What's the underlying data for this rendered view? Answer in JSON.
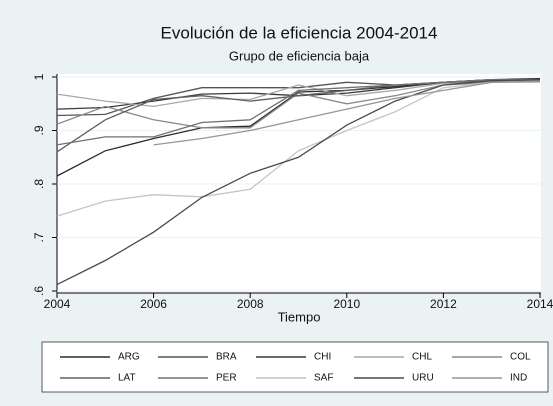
{
  "chart_data": {
    "type": "line",
    "title": "Evolución de la eficiencia 2004-2014",
    "subtitle": "Grupo de eficiencia baja",
    "x_label": "Tiempo",
    "x": [
      2004,
      2005,
      2006,
      2007,
      2008,
      2009,
      2010,
      2011,
      2012,
      2013,
      2014
    ],
    "xlim": [
      2004,
      2014
    ],
    "xticks": [
      2004,
      2006,
      2008,
      2010,
      2012,
      2014
    ],
    "ylim": [
      0.6,
      1
    ],
    "yticks": [
      {
        "value": 0.6,
        "label": ".6"
      },
      {
        "value": 0.7,
        "label": ".7"
      },
      {
        "value": 0.8,
        "label": ".8"
      },
      {
        "value": 0.9,
        "label": ".9"
      },
      1
    ],
    "grid": true,
    "legend_position": "bottom",
    "series": [
      {
        "name": "ARG",
        "color": "#2b2b2b",
        "values": [
          0.815,
          0.862,
          0.885,
          0.905,
          0.908,
          0.972,
          0.975,
          0.982,
          0.99,
          0.995,
          0.997
        ]
      },
      {
        "name": "BRA",
        "color": "#555555",
        "values": [
          0.928,
          0.93,
          0.96,
          0.98,
          0.98,
          0.98,
          0.99,
          0.985,
          0.99,
          0.993,
          0.995
        ]
      },
      {
        "name": "CHI",
        "color": "#3a3a3a",
        "values": [
          0.94,
          0.943,
          0.955,
          0.968,
          0.97,
          0.965,
          0.97,
          0.98,
          0.99,
          0.995,
          0.995
        ]
      },
      {
        "name": "CHL",
        "color": "#a8a8a8",
        "values": [
          0.968,
          0.955,
          0.945,
          0.96,
          0.958,
          0.985,
          0.965,
          0.975,
          0.988,
          0.992,
          0.993
        ]
      },
      {
        "name": "COL",
        "color": "#8a8a8a",
        "values": [
          0.912,
          0.945,
          0.92,
          0.905,
          0.905,
          0.97,
          0.95,
          0.965,
          0.985,
          0.99,
          0.99
        ]
      },
      {
        "name": "LAT",
        "color": "#606060",
        "values": [
          0.86,
          0.92,
          0.958,
          0.965,
          0.955,
          0.965,
          0.975,
          0.985,
          0.99,
          0.993,
          0.995
        ]
      },
      {
        "name": "PER",
        "color": "#707070",
        "values": [
          0.873,
          0.888,
          0.888,
          0.915,
          0.92,
          0.975,
          0.98,
          0.985,
          0.99,
          0.995,
          0.995
        ]
      },
      {
        "name": "SAF",
        "color": "#c4c4c4",
        "values": [
          0.74,
          0.768,
          0.78,
          0.776,
          0.79,
          0.862,
          0.9,
          0.935,
          0.98,
          0.99,
          0.99
        ]
      },
      {
        "name": "URU",
        "color": "#4a4a4a",
        "values": [
          0.612,
          0.657,
          0.71,
          0.775,
          0.82,
          0.85,
          0.91,
          0.955,
          0.985,
          0.993,
          0.995
        ]
      },
      {
        "name": "IND",
        "color": "#969696",
        "values": [
          null,
          null,
          0.873,
          0.885,
          0.9,
          0.92,
          0.94,
          0.96,
          0.975,
          0.99,
          0.992
        ]
      }
    ]
  }
}
